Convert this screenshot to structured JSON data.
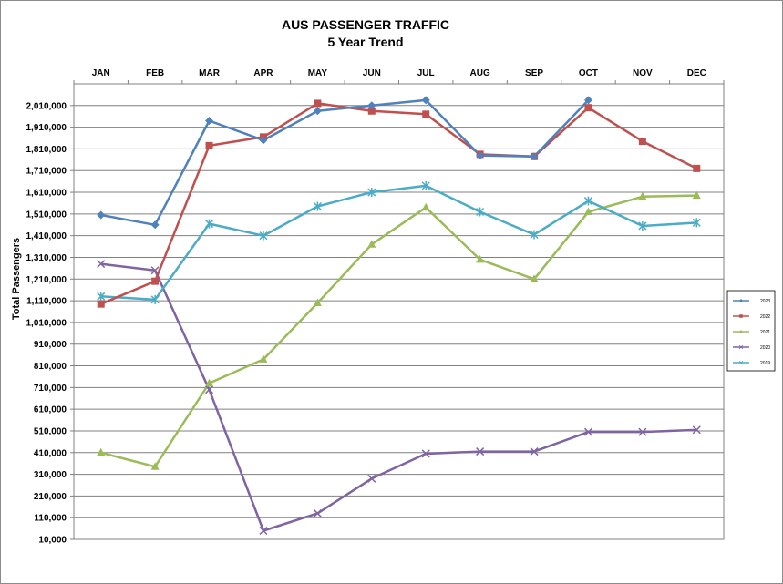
{
  "chart_data": {
    "type": "line",
    "title": "AUS PASSENGER TRAFFIC",
    "subtitle": "5 Year Trend",
    "xlabel": "",
    "ylabel": "Total Passengers",
    "categories": [
      "JAN",
      "FEB",
      "MAR",
      "APR",
      "MAY",
      "JUN",
      "JUL",
      "AUG",
      "SEP",
      "OCT",
      "NOV",
      "DEC"
    ],
    "ylim": [
      10000,
      2110000
    ],
    "y_ticks": [
      10000,
      110000,
      210000,
      310000,
      410000,
      510000,
      610000,
      710000,
      810000,
      910000,
      1010000,
      1110000,
      1210000,
      1310000,
      1410000,
      1510000,
      1610000,
      1710000,
      1810000,
      1910000,
      2010000
    ],
    "y_tick_labels": [
      "10,000",
      "110,000",
      "210,000",
      "310,000",
      "410,000",
      "510,000",
      "610,000",
      "710,000",
      "810,000",
      "910,000",
      "1,010,000",
      "1,110,000",
      "1,210,000",
      "1,310,000",
      "1,410,000",
      "1,510,000",
      "1,610,000",
      "1,710,000",
      "1,810,000",
      "1,910,000",
      "2,010,000"
    ],
    "x_axis_position": "top",
    "grid": true,
    "legend_position": "right",
    "series": [
      {
        "name": "2023",
        "color": "#4F81BD",
        "marker": "diamond",
        "values": [
          1505000,
          1460000,
          1940000,
          1850000,
          1985000,
          2010000,
          2035000,
          1780000,
          1775000,
          2035000,
          null,
          null
        ]
      },
      {
        "name": "2022",
        "color": "#C0504D",
        "marker": "square",
        "values": [
          1095000,
          1200000,
          1825000,
          1865000,
          2020000,
          1985000,
          1970000,
          1785000,
          1775000,
          2000000,
          1845000,
          1720000
        ]
      },
      {
        "name": "2021",
        "color": "#9BBB59",
        "marker": "triangle",
        "values": [
          410000,
          345000,
          730000,
          840000,
          1100000,
          1370000,
          1540000,
          1300000,
          1210000,
          1520000,
          1590000,
          1595000
        ]
      },
      {
        "name": "2020",
        "color": "#8064A2",
        "marker": "x",
        "values": [
          1280000,
          1250000,
          700000,
          50000,
          130000,
          290000,
          405000,
          415000,
          415000,
          505000,
          505000,
          515000
        ]
      },
      {
        "name": "2019",
        "color": "#4BACC6",
        "marker": "star",
        "values": [
          1130000,
          1115000,
          1465000,
          1410000,
          1545000,
          1610000,
          1640000,
          1520000,
          1415000,
          1570000,
          1455000,
          1470000
        ]
      }
    ]
  }
}
